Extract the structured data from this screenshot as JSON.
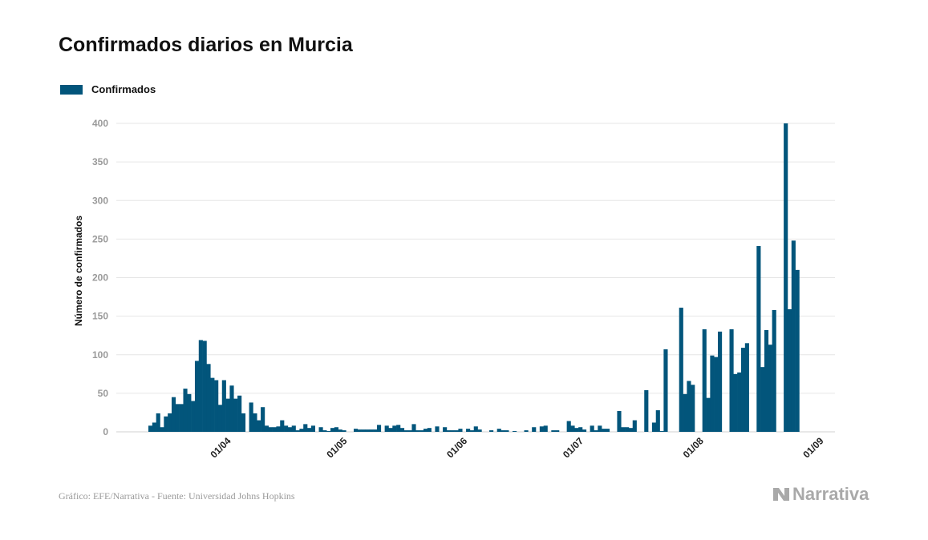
{
  "title": "Confirmados diarios en Murcia",
  "footer": "Gráfico: EFE/Narrativa - Fuente: Universidad Johns Hopkins",
  "logo_text": "Narrativa",
  "colors": {
    "bar": "#02557b",
    "grid": "#e6e6e6",
    "tick_label": "#9a9a9a",
    "logo": "#a9a9a9"
  },
  "chart_data": {
    "type": "bar",
    "title": "Confirmados diarios en Murcia",
    "xlabel": "",
    "ylabel": "Número de confirmados",
    "ylim": [
      0,
      400
    ],
    "yticks": [
      0,
      50,
      100,
      150,
      200,
      250,
      300,
      350,
      400
    ],
    "xticks": [
      "01/04",
      "01/05",
      "01/06",
      "01/07",
      "01/08",
      "01/09"
    ],
    "grid": true,
    "legend": "top-left",
    "series": [
      {
        "name": "Confirmados",
        "color": "#02557b",
        "x": [
          "11/03",
          "12/03",
          "13/03",
          "14/03",
          "15/03",
          "16/03",
          "17/03",
          "18/03",
          "19/03",
          "20/03",
          "21/03",
          "22/03",
          "23/03",
          "24/03",
          "25/03",
          "26/03",
          "27/03",
          "28/03",
          "29/03",
          "30/03",
          "31/03",
          "01/04",
          "02/04",
          "03/04",
          "04/04",
          "05/04",
          "06/04",
          "07/04",
          "08/04",
          "09/04",
          "10/04",
          "11/04",
          "12/04",
          "13/04",
          "14/04",
          "15/04",
          "16/04",
          "17/04",
          "18/04",
          "19/04",
          "20/04",
          "21/04",
          "22/04",
          "23/04",
          "24/04",
          "25/04",
          "26/04",
          "27/04",
          "28/04",
          "29/04",
          "30/04",
          "01/05",
          "02/05",
          "03/05",
          "04/05",
          "05/05",
          "06/05",
          "07/05",
          "08/05",
          "09/05",
          "10/05",
          "11/05",
          "12/05",
          "13/05",
          "14/05",
          "15/05",
          "16/05",
          "17/05",
          "18/05",
          "19/05",
          "20/05",
          "21/05",
          "22/05",
          "23/05",
          "24/05",
          "25/05",
          "26/05",
          "27/05",
          "28/05",
          "29/05",
          "30/05",
          "31/05",
          "01/06",
          "02/06",
          "03/06",
          "04/06",
          "05/06",
          "06/06",
          "07/06",
          "08/06",
          "09/06",
          "10/06",
          "11/06",
          "12/06",
          "13/06",
          "14/06",
          "15/06",
          "16/06",
          "17/06",
          "18/06",
          "19/06",
          "20/06",
          "21/06",
          "22/06",
          "23/06",
          "24/06",
          "25/06",
          "26/06",
          "27/06",
          "28/06",
          "29/06",
          "30/06",
          "01/07",
          "02/07",
          "03/07",
          "04/07",
          "05/07",
          "06/07",
          "07/07",
          "08/07",
          "09/07",
          "10/07",
          "11/07",
          "12/07",
          "13/07",
          "14/07",
          "15/07",
          "16/07",
          "17/07",
          "18/07",
          "19/07",
          "20/07",
          "21/07",
          "22/07",
          "23/07",
          "24/07",
          "25/07",
          "26/07",
          "27/07",
          "28/07",
          "29/07",
          "30/07",
          "31/07",
          "01/08",
          "02/08",
          "03/08",
          "04/08",
          "05/08",
          "06/08",
          "07/08",
          "08/08",
          "09/08",
          "10/08",
          "11/08",
          "12/08",
          "13/08",
          "14/08",
          "15/08",
          "16/08",
          "17/08",
          "18/08",
          "19/08",
          "20/08",
          "21/08",
          "22/08",
          "23/08",
          "24/08",
          "25/08"
        ],
        "values": [
          8,
          12,
          24,
          6,
          20,
          24,
          45,
          36,
          36,
          56,
          49,
          40,
          92,
          119,
          118,
          88,
          70,
          67,
          35,
          67,
          43,
          60,
          43,
          47,
          24,
          0,
          38,
          24,
          15,
          32,
          8,
          6,
          6,
          7,
          15,
          8,
          6,
          8,
          2,
          4,
          10,
          5,
          8,
          0,
          6,
          2,
          1,
          5,
          6,
          3,
          2,
          0,
          0,
          4,
          3,
          3,
          3,
          3,
          3,
          9,
          0,
          8,
          5,
          8,
          9,
          5,
          2,
          2,
          10,
          2,
          2,
          4,
          5,
          0,
          7,
          0,
          6,
          2,
          2,
          2,
          4,
          0,
          4,
          2,
          7,
          3,
          0,
          0,
          2,
          0,
          4,
          2,
          2,
          0,
          1,
          0,
          0,
          2,
          0,
          6,
          0,
          7,
          8,
          0,
          2,
          2,
          0,
          0,
          14,
          8,
          5,
          6,
          3,
          0,
          8,
          2,
          8,
          4,
          4,
          0,
          0,
          27,
          6,
          6,
          5,
          15,
          0,
          0,
          54,
          0,
          12,
          28,
          1,
          107,
          0,
          0,
          0,
          161,
          49,
          66,
          61,
          0,
          0,
          133,
          44,
          99,
          97,
          130,
          0,
          0,
          133,
          75,
          77,
          109,
          115,
          0,
          0,
          241,
          84,
          132,
          113,
          158,
          0,
          0,
          400,
          159,
          248,
          210
        ]
      }
    ]
  }
}
